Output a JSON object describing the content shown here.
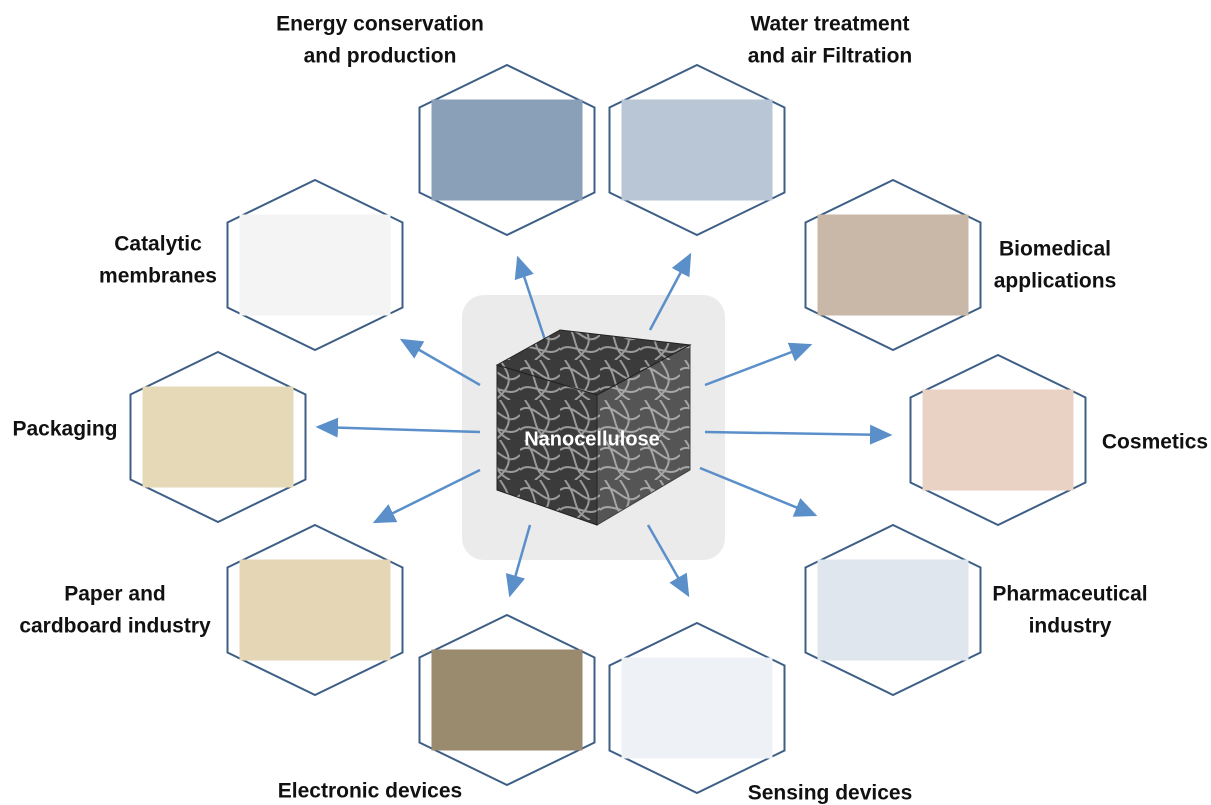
{
  "center": "Nanocellulose",
  "applications": [
    {
      "lines": [
        "Energy conservation",
        "and production"
      ]
    },
    {
      "lines": [
        "Water treatment",
        "and air Filtration"
      ]
    },
    {
      "lines": [
        "Catalytic",
        "membranes"
      ]
    },
    {
      "lines": [
        "Biomedical",
        "applications"
      ]
    },
    {
      "lines": [
        "Packaging"
      ]
    },
    {
      "lines": [
        "Cosmetics"
      ]
    },
    {
      "lines": [
        "Paper and",
        "cardboard industry"
      ]
    },
    {
      "lines": [
        "Pharmaceutical",
        "industry"
      ]
    },
    {
      "lines": [
        "Electronic devices"
      ]
    },
    {
      "lines": [
        "Sensing devices"
      ]
    }
  ]
}
